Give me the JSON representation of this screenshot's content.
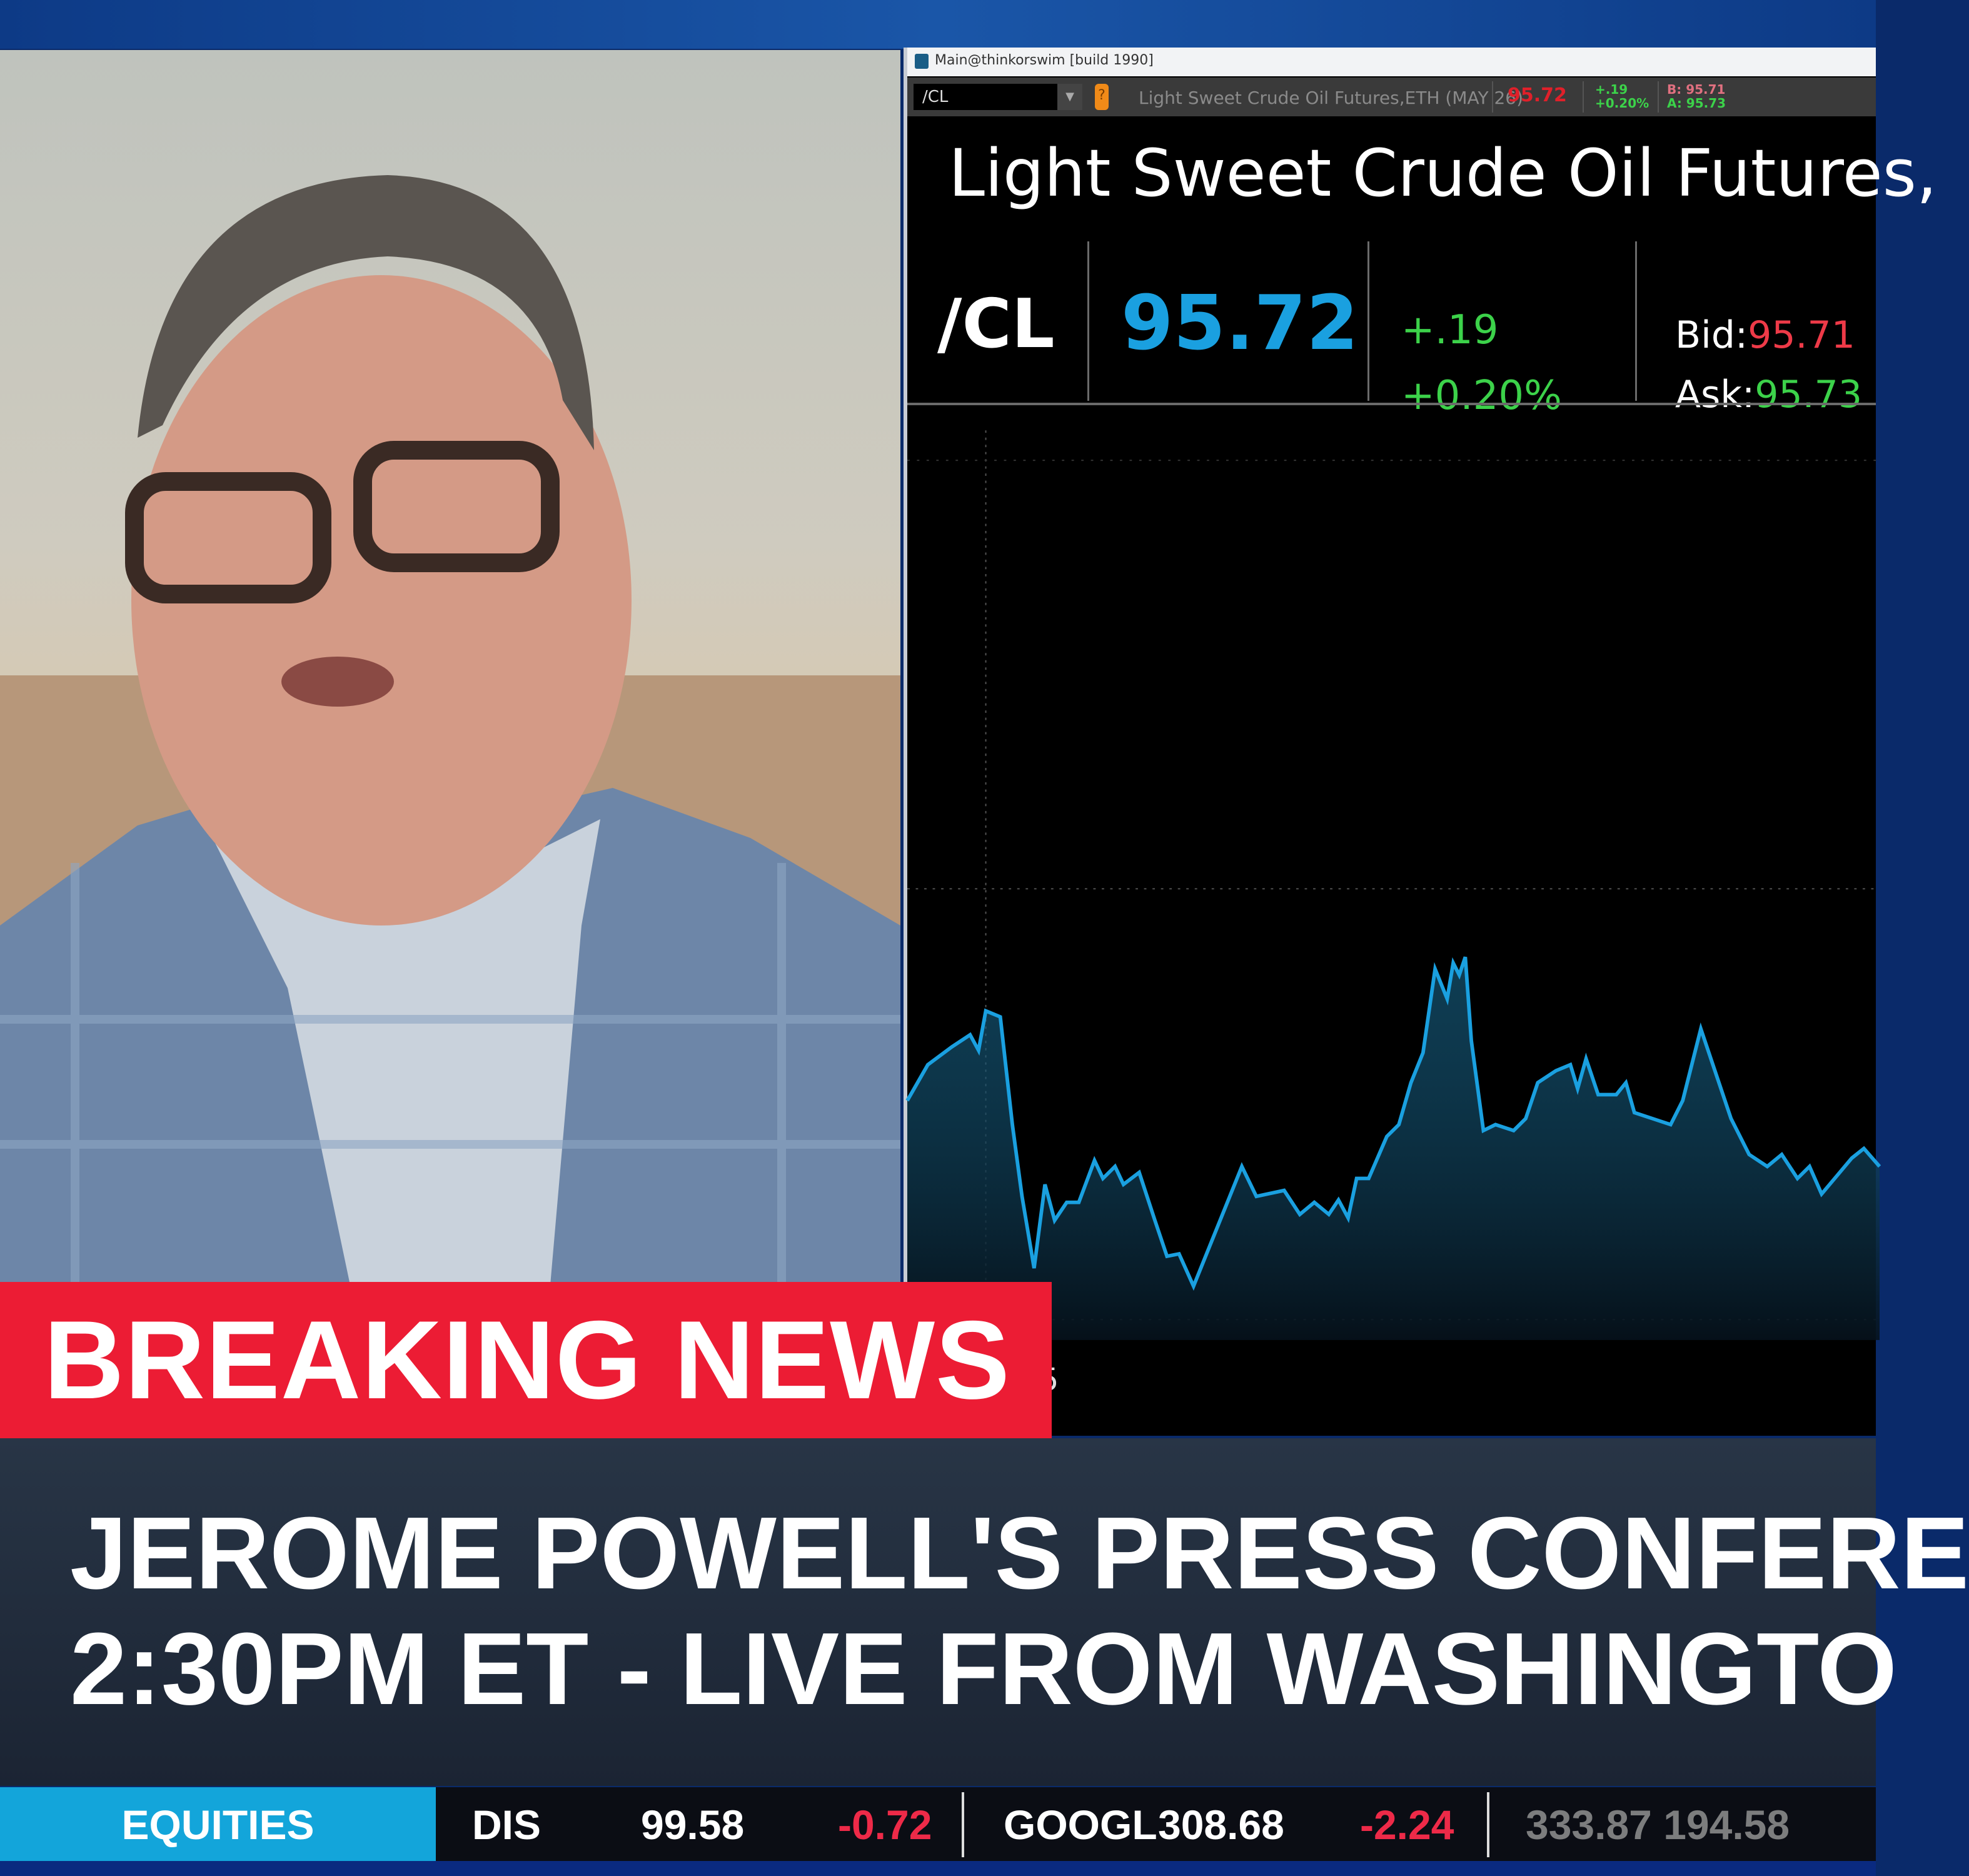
{
  "platform_window": {
    "title": "Main@thinkorswim [build 1990]",
    "toolbar": {
      "symbol": "/CL",
      "description": "Light Sweet Crude Oil Futures,ETH (MAY 26)",
      "last": "95.72",
      "change": "+.19",
      "change_pct": "+0.20%",
      "bid": "B: 95.71",
      "ask": "A: 95.73"
    },
    "instrument_title": "Light Sweet Crude Oil Futures,",
    "quote": {
      "symbol": "/CL",
      "price": "95.72",
      "change": "+.19",
      "change_pct": "+0.20%",
      "bid_label": "Bid:",
      "bid": "95.71",
      "ask_label": "Ask:",
      "ask": "95.73"
    },
    "chart": {
      "axis_label_partial": "5",
      "line_color": "#1aa0e0"
    }
  },
  "lower_third": {
    "banner": "BREAKING NEWS",
    "headline_line1": "JEROME POWELL'S PRESS CONFERE",
    "headline_line2": "2:30PM ET - LIVE FROM WASHINGTO"
  },
  "ticker": {
    "category": "EQUITIES",
    "items": [
      {
        "symbol": "DIS",
        "price": "99.58",
        "change": "-0.72"
      },
      {
        "symbol": "GOOGL",
        "price": "308.68",
        "change": "-2.24"
      }
    ],
    "transition_text": "333.87 194.58"
  },
  "colors": {
    "accent_red": "#ec1c34",
    "accent_blue": "#13a5da",
    "up": "#3cd24a",
    "down": "#ee2a48"
  }
}
